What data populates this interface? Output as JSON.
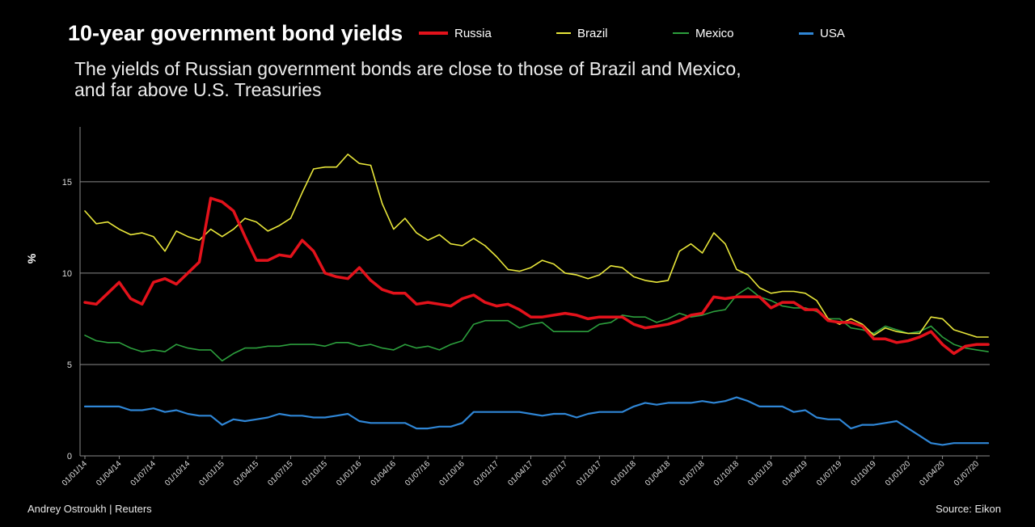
{
  "header": {
    "title": "10-year government bond yields",
    "subtitle_line1": "The yields of Russian government bonds are close to those of Brazil and Mexico,",
    "subtitle_line2": "and far above U.S. Treasuries"
  },
  "footer": {
    "credit": "Andrey Ostroukh  | Reuters",
    "source": "Source: Eikon"
  },
  "chart_data": {
    "type": "line",
    "ylabel": "%",
    "ylim": [
      0,
      18
    ],
    "yticks": [
      0,
      5,
      10,
      15
    ],
    "grid": "horizontal",
    "legend_position": "top",
    "x": [
      "01/01/14",
      "01/02/14",
      "01/03/14",
      "01/04/14",
      "01/05/14",
      "01/06/14",
      "01/07/14",
      "01/08/14",
      "01/09/14",
      "01/10/14",
      "01/11/14",
      "01/12/14",
      "01/01/15",
      "01/02/15",
      "01/03/15",
      "01/04/15",
      "01/05/15",
      "01/06/15",
      "01/07/15",
      "01/08/15",
      "01/09/15",
      "01/10/15",
      "01/11/15",
      "01/12/15",
      "01/01/16",
      "01/02/16",
      "01/03/16",
      "01/04/16",
      "01/05/16",
      "01/06/16",
      "01/07/16",
      "01/08/16",
      "01/09/16",
      "01/10/16",
      "01/11/16",
      "01/12/16",
      "01/01/17",
      "01/02/17",
      "01/03/17",
      "01/04/17",
      "01/05/17",
      "01/06/17",
      "01/07/17",
      "01/08/17",
      "01/09/17",
      "01/10/17",
      "01/11/17",
      "01/12/17",
      "01/01/18",
      "01/02/18",
      "01/03/18",
      "01/04/18",
      "01/05/18",
      "01/06/18",
      "01/07/18",
      "01/08/18",
      "01/09/18",
      "01/10/18",
      "01/11/18",
      "01/12/18",
      "01/01/19",
      "01/02/19",
      "01/03/19",
      "01/04/19",
      "01/05/19",
      "01/06/19",
      "01/07/19",
      "01/08/19",
      "01/09/19",
      "01/10/19",
      "01/11/19",
      "01/12/19",
      "01/01/20",
      "01/02/20",
      "01/03/20",
      "01/04/20",
      "01/05/20",
      "01/06/20",
      "01/07/20",
      "01/08/20"
    ],
    "xtick_labels": [
      "01/01/14",
      "01/04/14",
      "01/07/14",
      "01/10/14",
      "01/01/15",
      "01/04/15",
      "01/07/15",
      "01/10/15",
      "01/01/16",
      "01/04/16",
      "01/07/16",
      "01/10/16",
      "01/01/17",
      "01/04/17",
      "01/07/17",
      "01/10/17",
      "01/01/18",
      "01/04/18",
      "01/07/18",
      "01/10/18",
      "01/01/19",
      "01/04/19",
      "01/07/19",
      "01/10/19",
      "01/01/20",
      "01/04/20",
      "01/07/20"
    ],
    "series": [
      {
        "name": "Russia",
        "color": "#e3121b",
        "width": 3.5,
        "values": [
          8.4,
          8.3,
          8.9,
          9.5,
          8.6,
          8.3,
          9.5,
          9.7,
          9.4,
          10.0,
          10.6,
          14.1,
          13.9,
          13.4,
          12.0,
          10.7,
          10.7,
          11.0,
          10.9,
          11.8,
          11.2,
          10.0,
          9.8,
          9.7,
          10.3,
          9.6,
          9.1,
          8.9,
          8.9,
          8.3,
          8.4,
          8.3,
          8.2,
          8.6,
          8.8,
          8.4,
          8.2,
          8.3,
          8.0,
          7.6,
          7.6,
          7.7,
          7.8,
          7.7,
          7.5,
          7.6,
          7.6,
          7.6,
          7.2,
          7.0,
          7.1,
          7.2,
          7.4,
          7.7,
          7.8,
          8.7,
          8.6,
          8.7,
          8.7,
          8.7,
          8.1,
          8.4,
          8.4,
          8.0,
          8.0,
          7.4,
          7.3,
          7.3,
          7.1,
          6.4,
          6.4,
          6.2,
          6.3,
          6.5,
          6.8,
          6.1,
          5.6,
          6.0,
          6.1,
          6.1
        ]
      },
      {
        "name": "Brazil",
        "color": "#e8e63a",
        "width": 1.6,
        "values": [
          13.4,
          12.7,
          12.8,
          12.4,
          12.1,
          12.2,
          12.0,
          11.2,
          12.3,
          12.0,
          11.8,
          12.4,
          12.0,
          12.4,
          13.0,
          12.8,
          12.3,
          12.6,
          13.0,
          14.4,
          15.7,
          15.8,
          15.8,
          16.5,
          16.0,
          15.9,
          13.8,
          12.4,
          13.0,
          12.2,
          11.8,
          12.1,
          11.6,
          11.5,
          11.9,
          11.5,
          10.9,
          10.2,
          10.1,
          10.3,
          10.7,
          10.5,
          10.0,
          9.9,
          9.7,
          9.9,
          10.4,
          10.3,
          9.8,
          9.6,
          9.5,
          9.6,
          11.2,
          11.6,
          11.1,
          12.2,
          11.6,
          10.2,
          9.9,
          9.2,
          8.9,
          9.0,
          9.0,
          8.9,
          8.5,
          7.5,
          7.2,
          7.5,
          7.2,
          6.6,
          7.0,
          6.8,
          6.7,
          6.7,
          7.6,
          7.5,
          6.9,
          6.7,
          6.5,
          6.5
        ]
      },
      {
        "name": "Mexico",
        "color": "#2c9f3d",
        "width": 1.6,
        "values": [
          6.6,
          6.3,
          6.2,
          6.2,
          5.9,
          5.7,
          5.8,
          5.7,
          6.1,
          5.9,
          5.8,
          5.8,
          5.2,
          5.6,
          5.9,
          5.9,
          6.0,
          6.0,
          6.1,
          6.1,
          6.1,
          6.0,
          6.2,
          6.2,
          6.0,
          6.1,
          5.9,
          5.8,
          6.1,
          5.9,
          6.0,
          5.8,
          6.1,
          6.3,
          7.2,
          7.4,
          7.4,
          7.4,
          7.0,
          7.2,
          7.3,
          6.8,
          6.8,
          6.8,
          6.8,
          7.2,
          7.3,
          7.7,
          7.6,
          7.6,
          7.3,
          7.5,
          7.8,
          7.6,
          7.7,
          7.9,
          8.0,
          8.8,
          9.2,
          8.7,
          8.5,
          8.2,
          8.1,
          8.1,
          7.9,
          7.5,
          7.5,
          7.0,
          6.9,
          6.7,
          7.1,
          6.9,
          6.7,
          6.8,
          7.1,
          6.5,
          6.1,
          5.9,
          5.8,
          5.7
        ]
      },
      {
        "name": "USA",
        "color": "#2f86d6",
        "width": 2.2,
        "values": [
          2.7,
          2.7,
          2.7,
          2.7,
          2.5,
          2.5,
          2.6,
          2.4,
          2.5,
          2.3,
          2.2,
          2.2,
          1.7,
          2.0,
          1.9,
          2.0,
          2.1,
          2.3,
          2.2,
          2.2,
          2.1,
          2.1,
          2.2,
          2.3,
          1.9,
          1.8,
          1.8,
          1.8,
          1.8,
          1.5,
          1.5,
          1.6,
          1.6,
          1.8,
          2.4,
          2.4,
          2.4,
          2.4,
          2.4,
          2.3,
          2.2,
          2.3,
          2.3,
          2.1,
          2.3,
          2.4,
          2.4,
          2.4,
          2.7,
          2.9,
          2.8,
          2.9,
          2.9,
          2.9,
          3.0,
          2.9,
          3.0,
          3.2,
          3.0,
          2.7,
          2.7,
          2.7,
          2.4,
          2.5,
          2.1,
          2.0,
          2.0,
          1.5,
          1.7,
          1.7,
          1.8,
          1.9,
          1.5,
          1.1,
          0.7,
          0.6,
          0.7,
          0.7,
          0.7,
          0.7
        ]
      }
    ]
  }
}
